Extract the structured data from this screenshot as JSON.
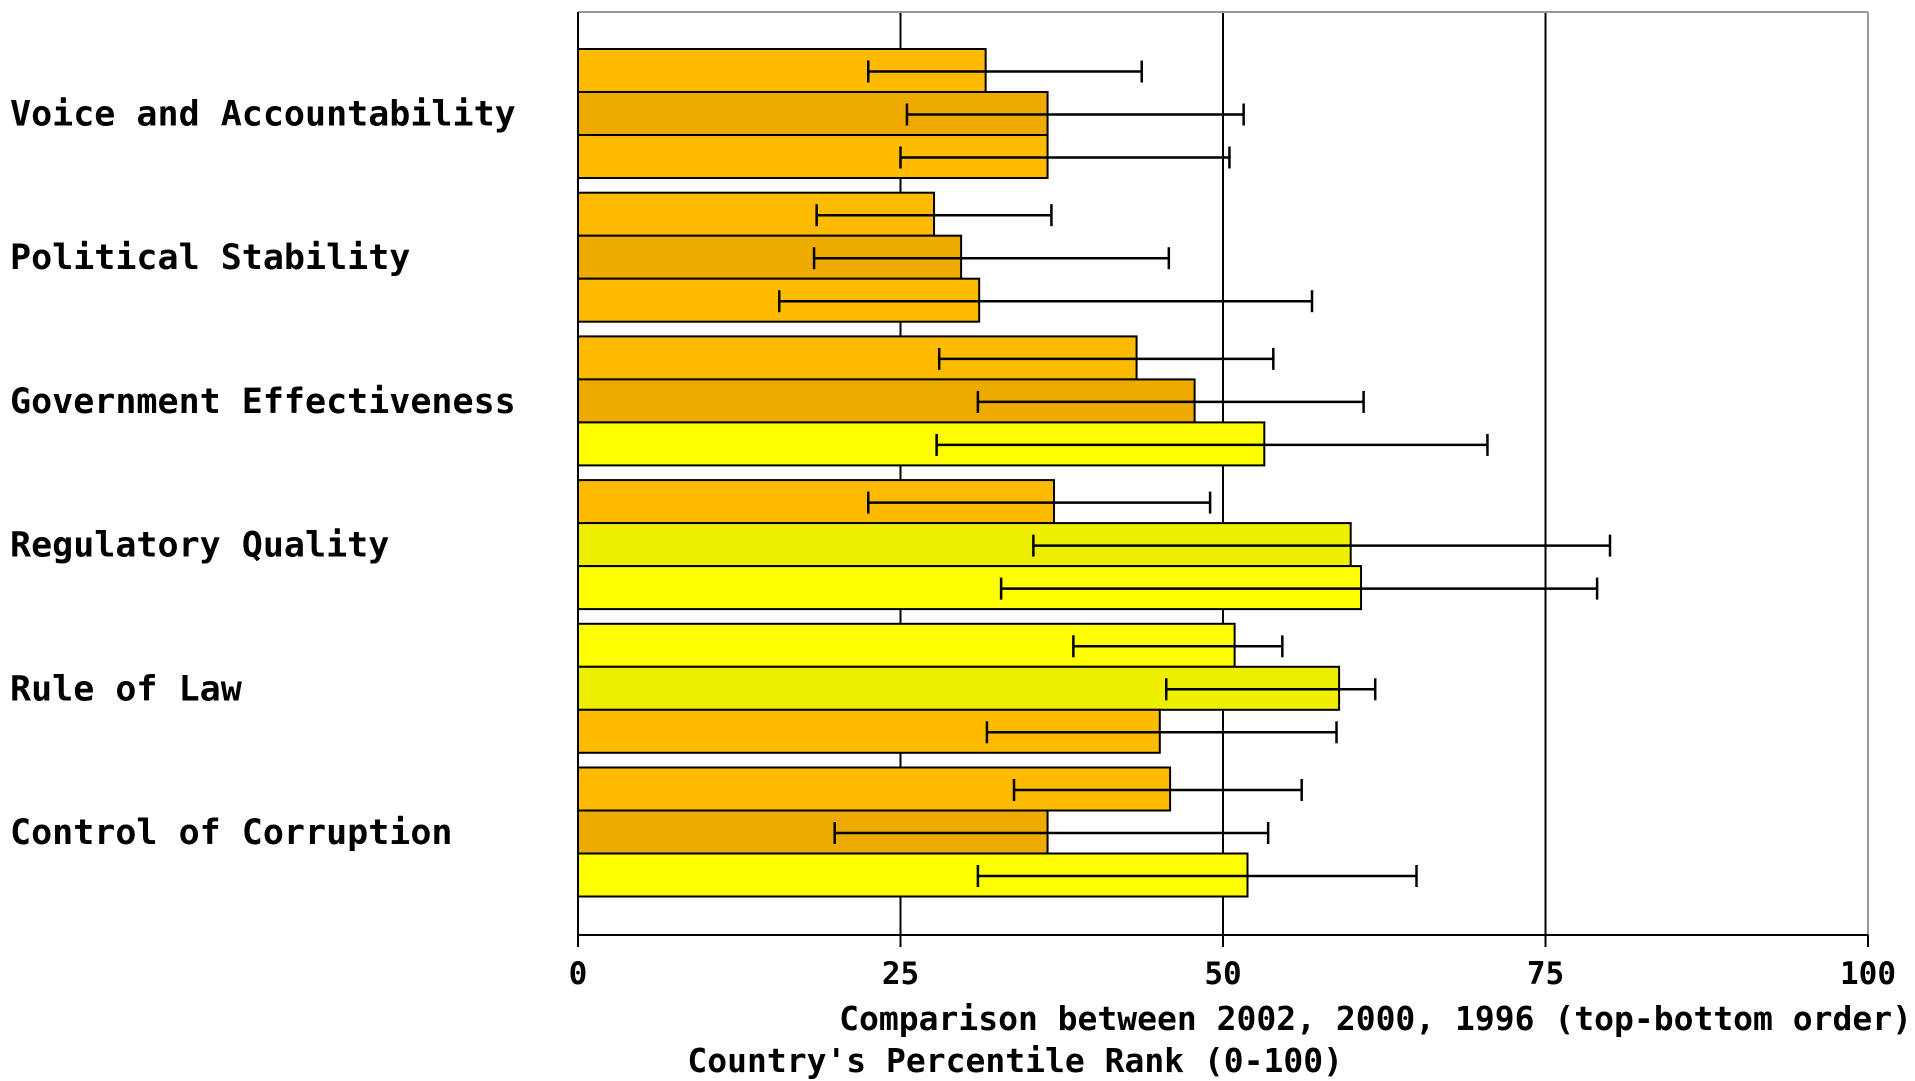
{
  "chart_data": {
    "type": "bar",
    "orientation": "horizontal",
    "categories": [
      "Voice and Accountability",
      "Political Stability",
      "Government Effectiveness",
      "Regulatory Quality",
      "Rule of Law",
      "Control of Corruption"
    ],
    "series_order": [
      "2002",
      "2000",
      "1996"
    ],
    "values": [
      [
        31.6,
        36.4,
        36.4
      ],
      [
        27.6,
        29.7,
        31.1
      ],
      [
        43.3,
        47.8,
        53.2
      ],
      [
        36.9,
        59.9,
        60.7
      ],
      [
        50.9,
        59.0,
        45.1
      ],
      [
        45.9,
        36.4,
        51.9
      ]
    ],
    "error_bars": [
      [
        [
          22.5,
          43.7
        ],
        [
          25.5,
          51.6
        ],
        [
          25.0,
          50.5
        ]
      ],
      [
        [
          18.5,
          36.7
        ],
        [
          18.3,
          45.8
        ],
        [
          15.6,
          56.9
        ]
      ],
      [
        [
          28.0,
          53.9
        ],
        [
          31.0,
          60.9
        ],
        [
          27.8,
          70.5
        ]
      ],
      [
        [
          22.5,
          49.0
        ],
        [
          35.3,
          80.0
        ],
        [
          32.8,
          79.0
        ]
      ],
      [
        [
          38.4,
          54.6
        ],
        [
          45.6,
          61.8
        ],
        [
          31.7,
          58.8
        ]
      ],
      [
        [
          33.8,
          56.1
        ],
        [
          19.9,
          53.5
        ],
        [
          31.0,
          65.0
        ]
      ]
    ],
    "bar_colors": [
      [
        "#FFBB00",
        "#EEAA00",
        "#FFBB00"
      ],
      [
        "#FFBB00",
        "#EEAA00",
        "#FFBB00"
      ],
      [
        "#FFBB00",
        "#EEAA00",
        "#FFFF00"
      ],
      [
        "#FFBB00",
        "#EEEE00",
        "#FFFF00"
      ],
      [
        "#FFFF00",
        "#EEEE00",
        "#FFBB00"
      ],
      [
        "#FFBB00",
        "#EEAA00",
        "#FFFF00"
      ]
    ],
    "xlim": [
      0,
      100
    ],
    "xticks": [
      0,
      25,
      50,
      75,
      100
    ],
    "xtick_labels": [
      "0",
      "25",
      "50",
      "75",
      "100"
    ],
    "grid": "vertical lines at 25, 50, 75",
    "xlabel_line1": "Comparison between 2002, 2000, 1996 (top-bottom order)",
    "xlabel_line2": "Country's Percentile Rank (0-100)"
  }
}
